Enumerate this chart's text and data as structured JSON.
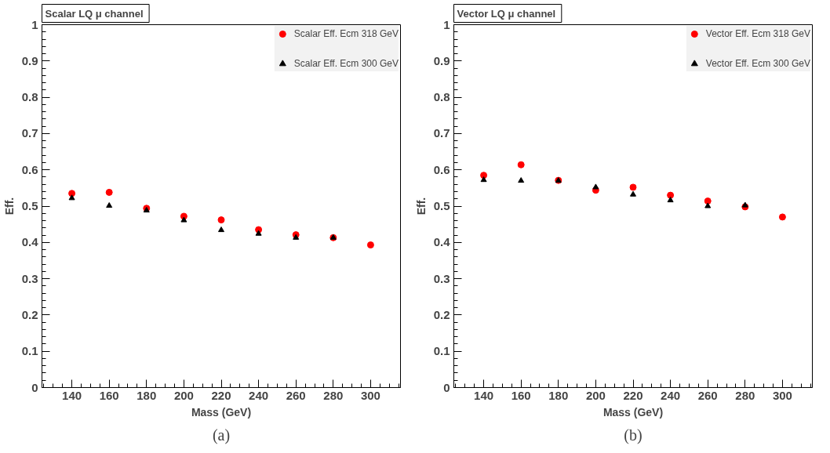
{
  "chart_data": [
    {
      "type": "scatter",
      "title": "Scalar LQ  μ channel",
      "xlabel": "Mass (GeV)",
      "ylabel": "Eff.",
      "x": [
        140,
        160,
        180,
        200,
        220,
        240,
        260,
        280,
        300
      ],
      "xlim": [
        124,
        316
      ],
      "ylim": [
        0,
        1
      ],
      "xticks": [
        140,
        160,
        180,
        200,
        220,
        240,
        260,
        280,
        300
      ],
      "yticks": [
        0,
        0.1,
        0.2,
        0.3,
        0.4,
        0.5,
        0.6,
        0.7,
        0.8,
        0.9,
        1
      ],
      "grid": false,
      "legend": "top right",
      "annotations": [
        "(a)"
      ],
      "series": [
        {
          "name": "Scalar Eff. Ecm 318 GeV",
          "color": "#ff0000",
          "marker": "circle",
          "values": [
            0.535,
            0.538,
            0.494,
            0.472,
            0.462,
            0.435,
            0.421,
            0.413,
            0.393
          ]
        },
        {
          "name": "Scalar Eff. Ecm 300 GeV",
          "color": "#000000",
          "marker": "triangle",
          "values": [
            0.522,
            0.501,
            0.488,
            0.461,
            0.434,
            0.424,
            0.413,
            0.413,
            null
          ]
        }
      ]
    },
    {
      "type": "scatter",
      "title": "Vector LQ  μ channel",
      "xlabel": "Mass (GeV)",
      "ylabel": "Eff.",
      "x": [
        140,
        160,
        180,
        200,
        220,
        240,
        260,
        280,
        300
      ],
      "xlim": [
        124,
        316
      ],
      "ylim": [
        0,
        1
      ],
      "xticks": [
        140,
        160,
        180,
        200,
        220,
        240,
        260,
        280,
        300
      ],
      "yticks": [
        0,
        0.1,
        0.2,
        0.3,
        0.4,
        0.5,
        0.6,
        0.7,
        0.8,
        0.9,
        1
      ],
      "grid": false,
      "legend": "top right",
      "annotations": [
        "(b)"
      ],
      "series": [
        {
          "name": "Vector Eff. Ecm 318 GeV",
          "color": "#ff0000",
          "marker": "circle",
          "values": [
            0.585,
            0.614,
            0.571,
            0.544,
            0.552,
            0.53,
            0.514,
            0.498,
            0.47
          ]
        },
        {
          "name": "Vector Eff. Ecm 300 GeV",
          "color": "#000000",
          "marker": "triangle",
          "values": [
            0.572,
            0.57,
            0.57,
            0.552,
            0.532,
            0.516,
            0.5,
            0.502,
            null
          ]
        }
      ]
    }
  ]
}
